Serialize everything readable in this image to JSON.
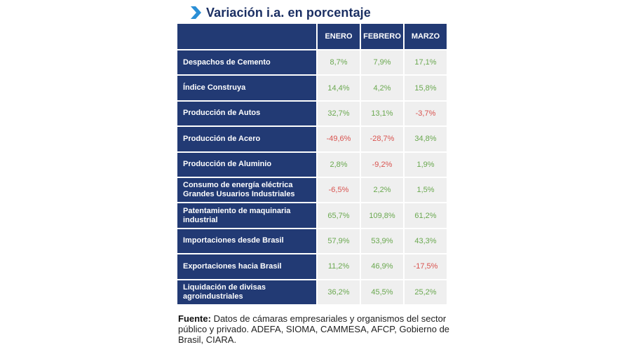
{
  "title": "Variación i.a. en porcentaje",
  "icons": {
    "title_marker": "chevron-right-icon"
  },
  "colors": {
    "header_bg": "#223a74",
    "cell_bg": "#efefef",
    "positive": "#6aa84f",
    "negative": "#d9534f",
    "title": "#1b2f63"
  },
  "table": {
    "columns": [
      "ENERO",
      "FEBRERO",
      "MARZO"
    ],
    "rows": [
      {
        "label": "Despachos de Cemento",
        "values": [
          "8,7%",
          "7,9%",
          "17,1%"
        ]
      },
      {
        "label": "Índice Construya",
        "values": [
          "14,4%",
          "4,2%",
          "15,8%"
        ]
      },
      {
        "label": "Producción de Autos",
        "values": [
          "32,7%",
          "13,1%",
          "-3,7%"
        ]
      },
      {
        "label": "Producción de Acero",
        "values": [
          "-49,6%",
          "-28,7%",
          "34,8%"
        ]
      },
      {
        "label": "Producción de Aluminio",
        "values": [
          "2,8%",
          "-9,2%",
          "1,9%"
        ]
      },
      {
        "label": "Consumo de energía eléctrica Grandes Usuarios Industriales",
        "values": [
          "-6,5%",
          "2,2%",
          "1,5%"
        ]
      },
      {
        "label": "Patentamiento de maquinaria industrial",
        "values": [
          "65,7%",
          "109,8%",
          "61,2%"
        ]
      },
      {
        "label": "Importaciones desde Brasil",
        "values": [
          "57,9%",
          "53,9%",
          "43,3%"
        ]
      },
      {
        "label": "Exportaciones hacia Brasil",
        "values": [
          "11,2%",
          "46,9%",
          "-17,5%"
        ]
      },
      {
        "label": "Liquidación de divisas agroindustriales",
        "values": [
          "36,2%",
          "45,5%",
          "25,2%"
        ]
      }
    ]
  },
  "source": {
    "label": "Fuente:",
    "text": " Datos de cámaras empresariales y organismos del sector público y privado. ADEFA, SIOMA, CAMMESA, AFCP, Gobierno de Brasil, CIARA."
  }
}
